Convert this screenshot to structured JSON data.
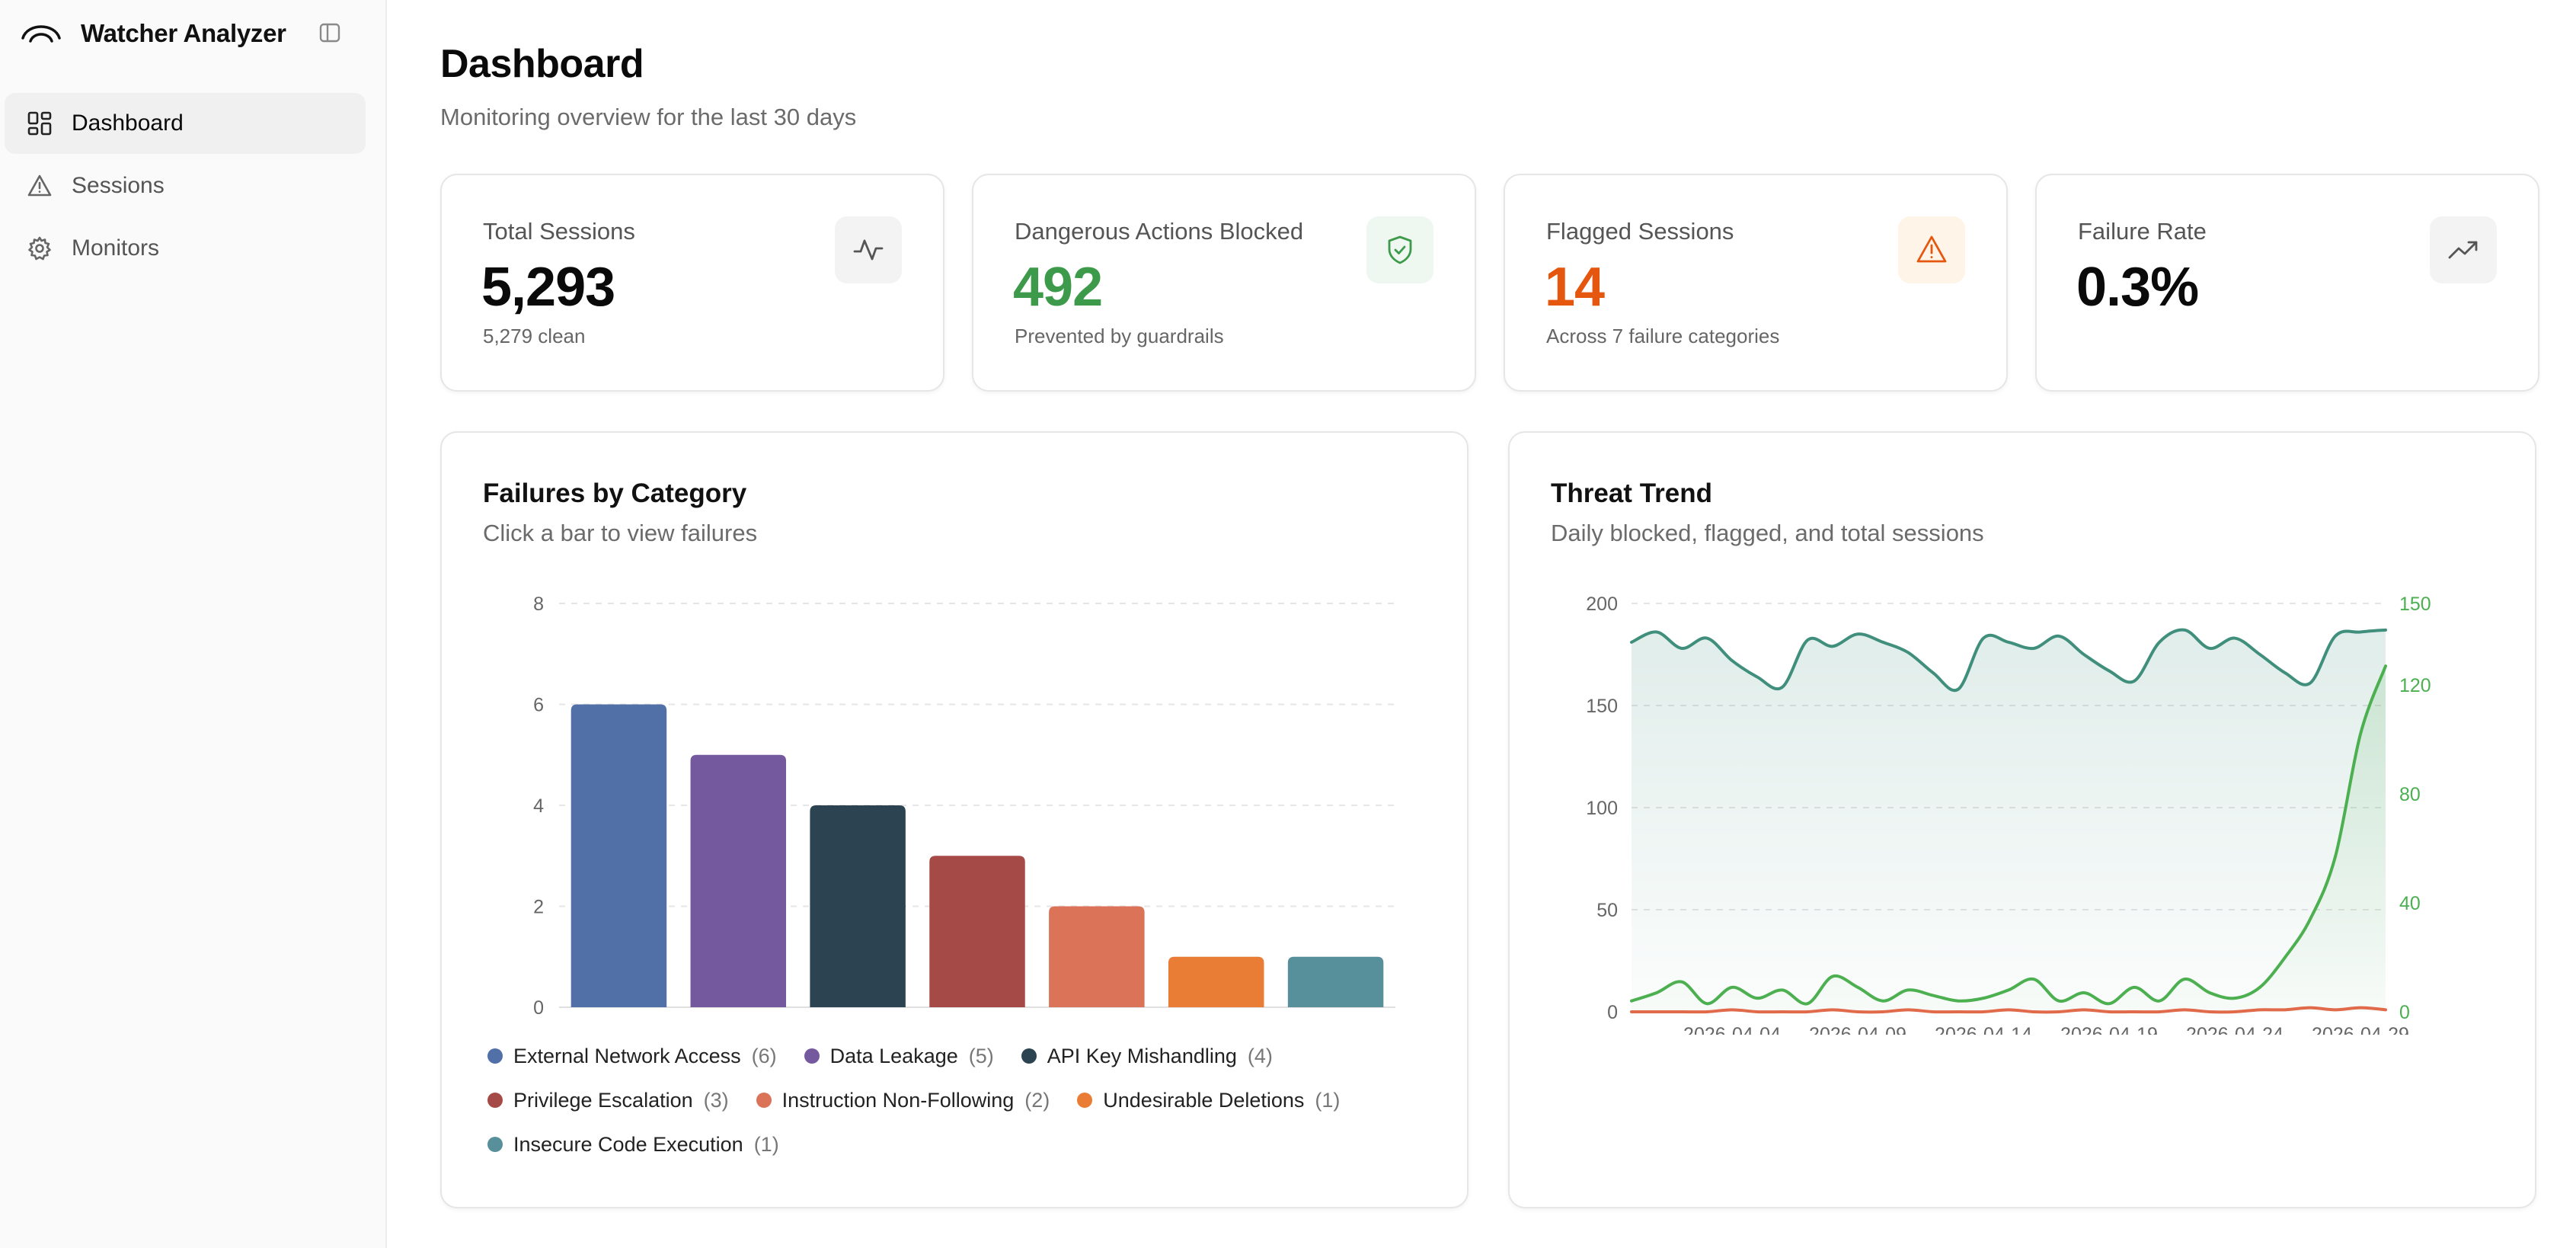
{
  "app": {
    "name": "Watcher Analyzer"
  },
  "sidebar": {
    "items": [
      {
        "label": "Dashboard",
        "icon": "dashboard-icon",
        "active": true
      },
      {
        "label": "Sessions",
        "icon": "warning-icon",
        "active": false
      },
      {
        "label": "Monitors",
        "icon": "gear-icon",
        "active": false
      }
    ]
  },
  "header": {
    "title": "Dashboard",
    "subtitle": "Monitoring overview for the last 30 days"
  },
  "stats": [
    {
      "label": "Total Sessions",
      "value": "5,293",
      "sub": "5,279 clean",
      "icon": "activity-icon",
      "value_color": "#0a0a0a",
      "icon_bg": "#f3f3f3",
      "icon_color": "#555555"
    },
    {
      "label": "Dangerous Actions Blocked",
      "value": "492",
      "sub": "Prevented by guardrails",
      "icon": "shield-check-icon",
      "value_color": "#3d9a4b",
      "icon_bg": "#eef8f0",
      "icon_color": "#3d9a4b"
    },
    {
      "label": "Flagged Sessions",
      "value": "14",
      "sub": "Across 7 failure categories",
      "icon": "alert-triangle-icon",
      "value_color": "#e5570f",
      "icon_bg": "#fff4e8",
      "icon_color": "#e5570f"
    },
    {
      "label": "Failure Rate",
      "value": "0.3%",
      "sub": "",
      "icon": "trending-up-icon",
      "value_color": "#0a0a0a",
      "icon_bg": "#f3f3f3",
      "icon_color": "#555555"
    }
  ],
  "failures_panel": {
    "title": "Failures by Category",
    "subtitle": "Click a bar to view failures"
  },
  "trend_panel": {
    "title": "Threat Trend",
    "subtitle": "Daily blocked, flagged, and total sessions"
  },
  "chart_data": [
    {
      "type": "bar",
      "title": "Failures by Category",
      "categories": [
        "External Network Access",
        "Data Leakage",
        "API Key Mishandling",
        "Privilege Escalation",
        "Instruction Non-Following",
        "Undesirable Deletions",
        "Insecure Code Execution"
      ],
      "values": [
        6,
        5,
        4,
        3,
        2,
        1,
        1
      ],
      "colors": [
        "#5170a8",
        "#74599e",
        "#2c4452",
        "#a64a48",
        "#da7358",
        "#ea7d35",
        "#578f9b"
      ],
      "ylim": [
        0,
        8
      ],
      "yticks": [
        0,
        2,
        4,
        6,
        8
      ],
      "grid": true,
      "legend": "bottom"
    },
    {
      "type": "area",
      "title": "Threat Trend",
      "x": [
        "2026-03-31",
        "2026-04-01",
        "2026-04-02",
        "2026-04-03",
        "2026-04-04",
        "2026-04-05",
        "2026-04-06",
        "2026-04-07",
        "2026-04-08",
        "2026-04-09",
        "2026-04-10",
        "2026-04-11",
        "2026-04-12",
        "2026-04-13",
        "2026-04-14",
        "2026-04-15",
        "2026-04-16",
        "2026-04-17",
        "2026-04-18",
        "2026-04-19",
        "2026-04-20",
        "2026-04-21",
        "2026-04-22",
        "2026-04-23",
        "2026-04-24",
        "2026-04-25",
        "2026-04-26",
        "2026-04-27",
        "2026-04-28",
        "2026-04-29",
        "2026-04-30"
      ],
      "xticks": [
        "2026-04-04",
        "2026-04-09",
        "2026-04-14",
        "2026-04-19",
        "2026-04-24",
        "2026-04-29"
      ],
      "y_left": {
        "ylim": [
          0,
          200
        ],
        "ticks": [
          0,
          50,
          100,
          150,
          200
        ]
      },
      "y_right": {
        "ylim": [
          0,
          150
        ],
        "ticks": [
          0,
          40,
          80,
          120,
          150
        ]
      },
      "series": [
        {
          "color": "#3f8f7c",
          "axis": "left",
          "fill": true,
          "values": [
            181,
            186,
            178,
            183,
            172,
            164,
            159,
            182,
            179,
            185,
            181,
            176,
            166,
            158,
            183,
            181,
            178,
            184,
            175,
            167,
            162,
            181,
            187,
            178,
            183,
            175,
            166,
            161,
            184,
            186,
            187
          ]
        },
        {
          "color": "#4caf50",
          "axis": "right",
          "fill": true,
          "values": [
            4,
            7,
            11,
            3,
            9,
            5,
            8,
            3,
            13,
            9,
            4,
            8,
            6,
            4,
            5,
            8,
            12,
            4,
            7,
            3,
            9,
            4,
            12,
            7,
            5,
            9,
            20,
            34,
            57,
            102,
            127
          ]
        },
        {
          "color": "#e06a4a",
          "axis": "left",
          "fill": false,
          "values": [
            0,
            0,
            0,
            0,
            1,
            0,
            0,
            0,
            1,
            0,
            0,
            1,
            0,
            0,
            0,
            1,
            0,
            0,
            1,
            0,
            0,
            0,
            1,
            0,
            0,
            1,
            1,
            2,
            1,
            2,
            1
          ]
        }
      ],
      "grid": true
    }
  ]
}
